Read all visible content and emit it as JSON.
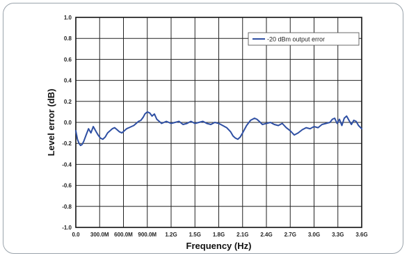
{
  "chart_data": {
    "type": "line",
    "xlabel": "Frequency (Hz)",
    "ylabel": "Level error (dB)",
    "xlim": [
      0,
      3600000000
    ],
    "ylim": [
      -1.0,
      1.0
    ],
    "grid": true,
    "legend_position": "top-right",
    "x_tick_values": [
      0,
      300000000,
      600000000,
      900000000,
      1200000000,
      1500000000,
      1800000000,
      2100000000,
      2400000000,
      2700000000,
      3000000000,
      3300000000,
      3600000000
    ],
    "x_tick_labels": [
      "0.0",
      "300.0M",
      "600.0M",
      "900.0M",
      "1.2G",
      "1.5G",
      "1.8G",
      "2.1G",
      "2.4G",
      "2.7G",
      "3.0G",
      "3.3G",
      "3.6G"
    ],
    "y_tick_values": [
      1.0,
      0.8,
      0.6,
      0.4,
      0.2,
      0.0,
      -0.2,
      -0.4,
      -0.6,
      -0.8,
      -1.0
    ],
    "y_tick_labels": [
      "1.0",
      "0.8",
      "0.6",
      "0.4",
      "0.2",
      "0.0",
      "-0.2",
      "-0.4",
      "-0.6",
      "-0.8",
      "-1.0"
    ],
    "series": [
      {
        "name": "-20 dBm output error",
        "color": "#2e4fa3",
        "x": [
          0,
          20000000,
          40000000,
          60000000,
          80000000,
          100000000,
          130000000,
          160000000,
          190000000,
          220000000,
          250000000,
          280000000,
          310000000,
          340000000,
          370000000,
          400000000,
          430000000,
          460000000,
          490000000,
          520000000,
          550000000,
          580000000,
          610000000,
          640000000,
          670000000,
          700000000,
          730000000,
          760000000,
          790000000,
          820000000,
          850000000,
          870000000,
          900000000,
          930000000,
          960000000,
          990000000,
          1020000000,
          1050000000,
          1080000000,
          1110000000,
          1140000000,
          1170000000,
          1200000000,
          1250000000,
          1300000000,
          1350000000,
          1400000000,
          1450000000,
          1500000000,
          1550000000,
          1600000000,
          1650000000,
          1700000000,
          1750000000,
          1800000000,
          1850000000,
          1900000000,
          1950000000,
          1980000000,
          2010000000,
          2040000000,
          2070000000,
          2100000000,
          2150000000,
          2200000000,
          2250000000,
          2280000000,
          2310000000,
          2350000000,
          2400000000,
          2450000000,
          2500000000,
          2550000000,
          2600000000,
          2650000000,
          2700000000,
          2750000000,
          2800000000,
          2850000000,
          2900000000,
          2950000000,
          3000000000,
          3050000000,
          3100000000,
          3150000000,
          3200000000,
          3230000000,
          3260000000,
          3290000000,
          3320000000,
          3350000000,
          3380000000,
          3410000000,
          3440000000,
          3470000000,
          3500000000,
          3530000000,
          3560000000,
          3600000000
        ],
        "y": [
          -0.08,
          -0.16,
          -0.2,
          -0.22,
          -0.21,
          -0.18,
          -0.12,
          -0.06,
          -0.1,
          -0.04,
          -0.08,
          -0.12,
          -0.15,
          -0.16,
          -0.14,
          -0.1,
          -0.08,
          -0.06,
          -0.05,
          -0.07,
          -0.09,
          -0.1,
          -0.08,
          -0.06,
          -0.05,
          -0.04,
          -0.03,
          -0.01,
          0.01,
          0.02,
          0.05,
          0.08,
          0.1,
          0.09,
          0.06,
          0.08,
          0.03,
          0.01,
          -0.01,
          0.0,
          0.01,
          0.0,
          -0.01,
          0.0,
          0.01,
          -0.02,
          -0.01,
          0.01,
          -0.01,
          0.0,
          0.01,
          -0.01,
          -0.02,
          0.0,
          -0.01,
          -0.03,
          -0.05,
          -0.09,
          -0.13,
          -0.15,
          -0.16,
          -0.14,
          -0.1,
          -0.03,
          0.02,
          0.04,
          0.03,
          0.01,
          -0.02,
          -0.01,
          0.0,
          -0.02,
          -0.03,
          -0.01,
          -0.05,
          -0.08,
          -0.12,
          -0.1,
          -0.07,
          -0.05,
          -0.06,
          -0.04,
          -0.05,
          -0.02,
          -0.01,
          0.0,
          0.03,
          0.04,
          -0.01,
          0.03,
          -0.03,
          0.04,
          0.06,
          0.02,
          -0.02,
          0.02,
          0.01,
          -0.03,
          -0.06
        ]
      }
    ]
  }
}
